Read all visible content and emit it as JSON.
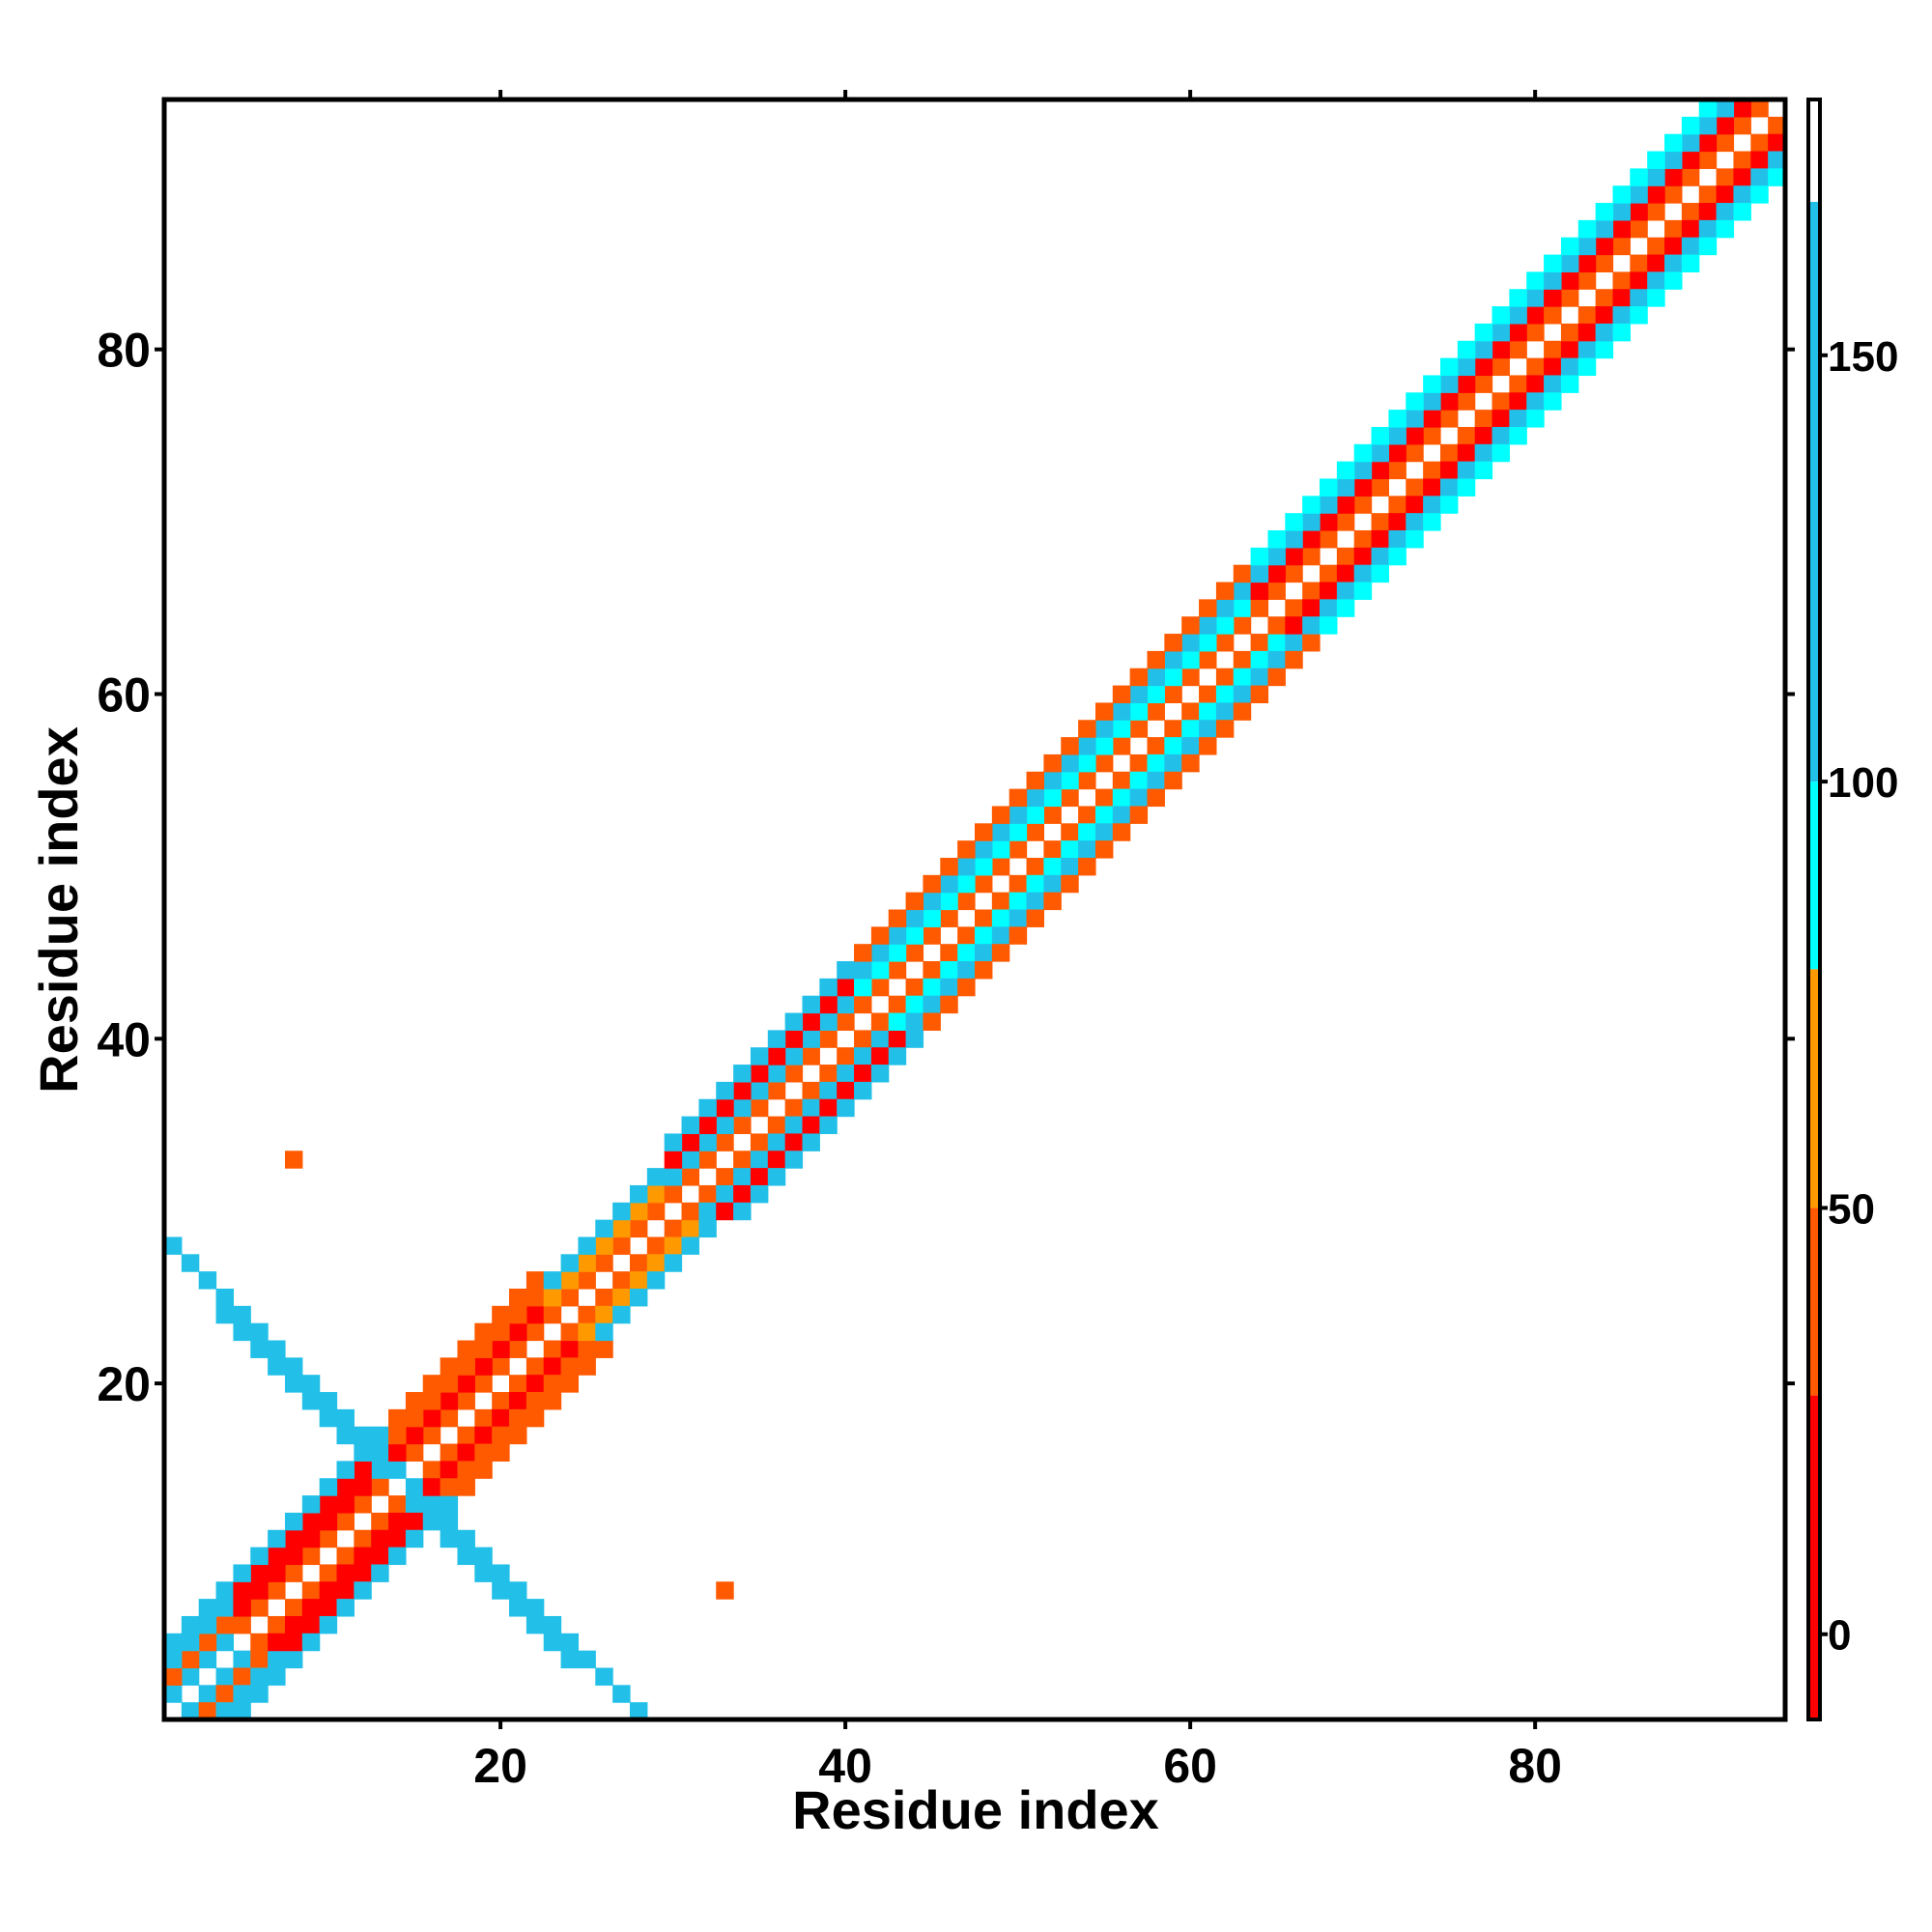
{
  "chart_data": {
    "type": "heatmap",
    "title": "",
    "xlabel": "Residue index",
    "ylabel": "Residue index",
    "xlim": [
      0.5,
      94.5
    ],
    "ylim": [
      0.5,
      94.5
    ],
    "x_ticks": [
      20,
      40,
      60,
      80
    ],
    "y_ticks": [
      20,
      40,
      60,
      80
    ],
    "x_tick_labels": [
      "20",
      "40",
      "60",
      "80"
    ],
    "y_tick_labels": [
      "20",
      "40",
      "60",
      "80"
    ],
    "grid": false,
    "colorbar": {
      "range": [
        -10,
        180
      ],
      "ticks": [
        0,
        50,
        100,
        150
      ],
      "tick_labels": [
        "0",
        "50",
        "100",
        "150"
      ],
      "bands": [
        {
          "from": -10,
          "to": 28,
          "color": "#ff0000"
        },
        {
          "from": 28,
          "to": 50,
          "color": "#ff5a00"
        },
        {
          "from": 50,
          "to": 78,
          "color": "#ff9900"
        },
        {
          "from": 78,
          "to": 100,
          "color": "#00ffff"
        },
        {
          "from": 100,
          "to": 168,
          "color": "#22c0e8"
        },
        {
          "from": 168,
          "to": 180,
          "color": "#ffffff"
        }
      ]
    },
    "segments": [
      {
        "from": 1,
        "to": 4,
        "offsets": [
          [
            1,
            120
          ],
          [
            2,
            35
          ],
          [
            3,
            110
          ],
          [
            4,
            130
          ]
        ]
      },
      {
        "from": 5,
        "to": 13,
        "offsets": [
          [
            1,
            30
          ],
          [
            2,
            8
          ],
          [
            3,
            20
          ],
          [
            4,
            110
          ]
        ]
      },
      {
        "from": 14,
        "to": 22,
        "offsets": [
          [
            1,
            40
          ],
          [
            2,
            5
          ],
          [
            3,
            30
          ],
          [
            4,
            35
          ]
        ]
      },
      {
        "from": 23,
        "to": 29,
        "offsets": [
          [
            1,
            45
          ],
          [
            2,
            60
          ],
          [
            3,
            115
          ]
        ]
      },
      {
        "from": 30,
        "to": 40,
        "offsets": [
          [
            1,
            40
          ],
          [
            2,
            115
          ],
          [
            3,
            12
          ],
          [
            4,
            150
          ]
        ]
      },
      {
        "from": 41,
        "to": 63,
        "offsets": [
          [
            1,
            45
          ],
          [
            2,
            95
          ],
          [
            3,
            115
          ],
          [
            4,
            40
          ]
        ]
      },
      {
        "from": 64,
        "to": 80,
        "offsets": [
          [
            1,
            42
          ],
          [
            2,
            15
          ],
          [
            3,
            115
          ],
          [
            4,
            95
          ]
        ]
      },
      {
        "from": 81,
        "to": 94,
        "offsets": [
          [
            1,
            45
          ],
          [
            2,
            15
          ],
          [
            3,
            110
          ],
          [
            4,
            95
          ]
        ]
      }
    ],
    "antiparallel_strands": [
      {
        "from": 1,
        "to": 14,
        "pair_sum": 29,
        "value": 160
      },
      {
        "from": 4,
        "to": 16,
        "pair_sum": 28,
        "value": 160
      }
    ],
    "isolated_cells": [
      {
        "x": 8,
        "y": 33,
        "value": 35
      },
      {
        "x": 33,
        "y": 8,
        "value": 35
      }
    ]
  }
}
